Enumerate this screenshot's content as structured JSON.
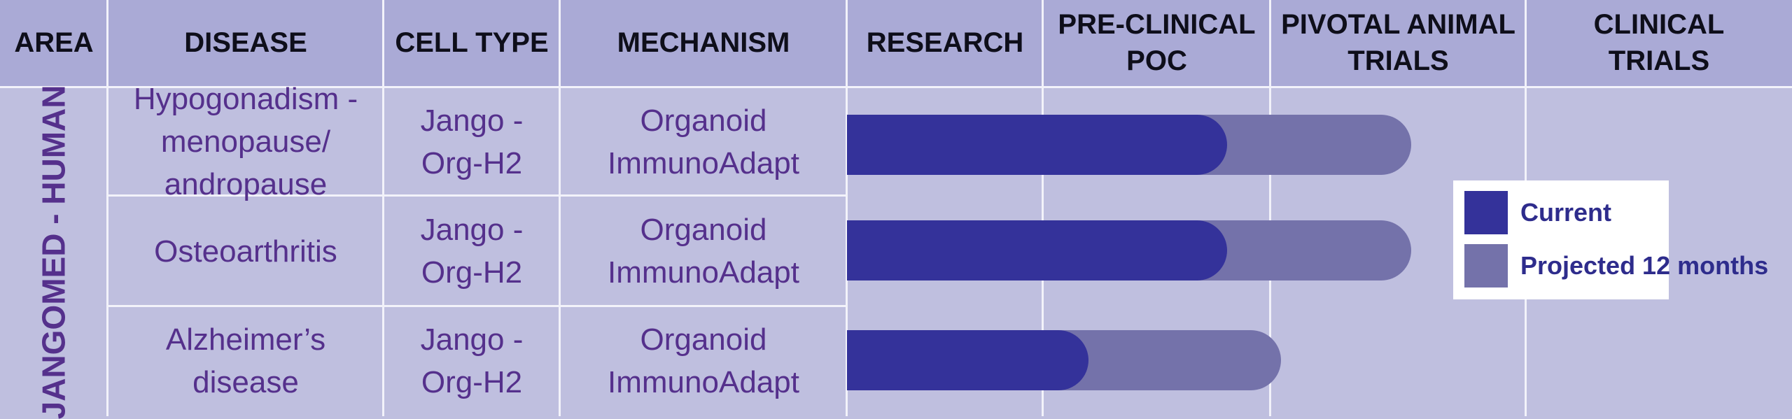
{
  "chart_data": {
    "type": "bar",
    "orientation": "horizontal",
    "area": "JANGOMED - HUMAN",
    "columns": [
      "AREA",
      "DISEASE",
      "CELL TYPE",
      "MECHANISM",
      "RESEARCH",
      "PRE-CLINICAL POC",
      "PIVOTAL ANIMAL TRIALS",
      "CLINICAL TRIALS"
    ],
    "stages": [
      "RESEARCH",
      "PRE-CLINICAL POC",
      "PIVOTAL ANIMAL TRIALS",
      "CLINICAL TRIALS"
    ],
    "rows": [
      {
        "disease": "Hypogonadism - menopause/ andropause",
        "cell_type": "Jango - Org-H2",
        "mechanism": "Organoid ImmunoAdapt"
      },
      {
        "disease": "Osteoarthritis",
        "cell_type": "Jango - Org-H2",
        "mechanism": "Organoid ImmunoAdapt"
      },
      {
        "disease": "Alzheimer’s disease",
        "cell_type": "Jango - Org-H2",
        "mechanism": "Organoid ImmunoAdapt"
      }
    ],
    "series": [
      {
        "name": "Current",
        "color": "#34329a",
        "values": [
          1.81,
          1.81,
          1.2
        ]
      },
      {
        "name": "Projected 12 months",
        "color": "#7472aa",
        "values": [
          2.55,
          2.55,
          2.04
        ]
      }
    ],
    "value_unit": "stages completed (1 = one stage column)",
    "xlim": [
      0,
      4
    ],
    "legend_position": "right"
  }
}
